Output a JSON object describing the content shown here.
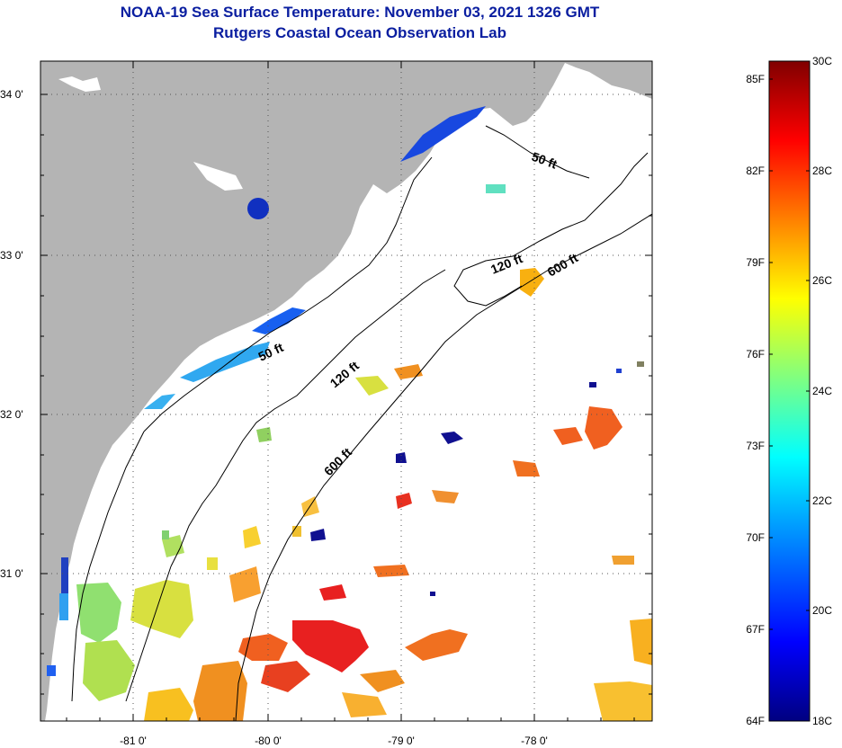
{
  "title": {
    "line1": "NOAA-19 Sea Surface Temperature:  November 03, 2021 1326 GMT",
    "line2": "Rutgers Coastal Ocean Observation Lab"
  },
  "map": {
    "lat_ticks": [
      "34 0'",
      "33 0'",
      "32 0'",
      "31 0'"
    ],
    "lon_ticks": [
      "-81 0'",
      "-80 0'",
      "-79 0'",
      "-78 0'"
    ],
    "land_color": "#b4b4b4",
    "ocean_color": "#ffffff",
    "isobaths": [
      {
        "label": "50 ft"
      },
      {
        "label": "120 ft"
      },
      {
        "label": "600 ft"
      },
      {
        "label": "50 ft"
      },
      {
        "label": "120 ft"
      },
      {
        "label": "600 ft"
      }
    ]
  },
  "colorbar": {
    "fahrenheit_labels": [
      "85F",
      "82F",
      "79F",
      "76F",
      "73F",
      "70F",
      "67F",
      "64F"
    ],
    "celsius_labels": [
      "30C",
      "28C",
      "26C",
      "24C",
      "22C",
      "20C",
      "18C"
    ],
    "range_c": [
      18,
      30
    ],
    "colors": [
      "#000080",
      "#0000ff",
      "#00a0ff",
      "#00ffff",
      "#80ff80",
      "#ffff00",
      "#ff8000",
      "#ff0000",
      "#800000"
    ]
  }
}
